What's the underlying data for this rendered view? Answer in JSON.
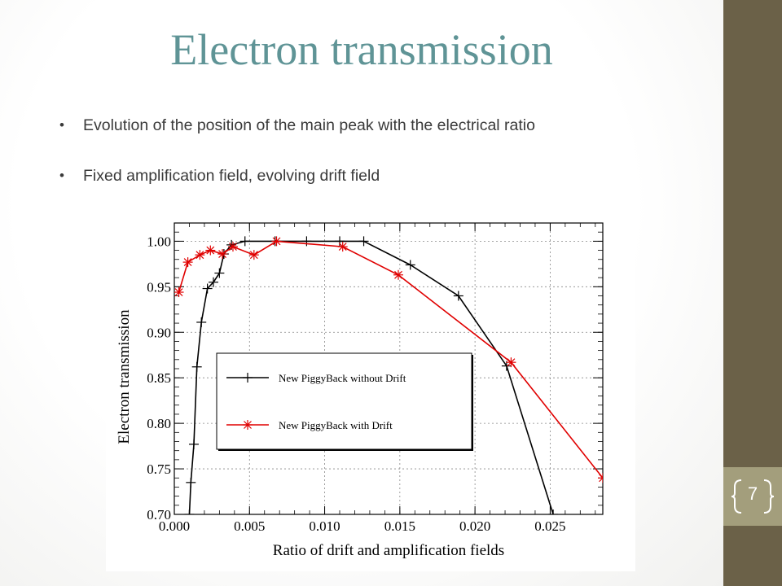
{
  "slide": {
    "title": "Electron transmission",
    "bullets": [
      "Evolution of the position of the main peak with the electrical ratio",
      "Fixed amplification field, evolving drift field"
    ],
    "page_number": "7",
    "colors": {
      "title": "#5f9496",
      "sidebar": "#6b6148",
      "badge": "#a39e7c"
    }
  },
  "chart_data": {
    "type": "line",
    "title": "",
    "xlabel": "Ratio of drift and amplification fields",
    "ylabel": "Electron transmission",
    "xlim": [
      0.0,
      0.0285
    ],
    "ylim": [
      0.7,
      1.02
    ],
    "xticks": [
      "0.000",
      "0.005",
      "0.010",
      "0.015",
      "0.020",
      "0.025"
    ],
    "yticks": [
      "0.70",
      "0.75",
      "0.80",
      "0.85",
      "0.90",
      "0.95",
      "1.00"
    ],
    "grid": true,
    "legend_position": "center-left",
    "series": [
      {
        "name": "New PiggyBack without Drift",
        "color": "#000000",
        "marker": "plus",
        "points": [
          [
            0.001,
            0.7
          ],
          [
            0.0011,
            0.735
          ],
          [
            0.0013,
            0.777
          ],
          [
            0.0015,
            0.862
          ],
          [
            0.0018,
            0.911
          ],
          [
            0.0022,
            0.948
          ],
          [
            0.0026,
            0.955
          ],
          [
            0.003,
            0.965
          ],
          [
            0.0033,
            0.986
          ],
          [
            0.0038,
            0.996
          ],
          [
            0.0047,
            1.0
          ],
          [
            0.0067,
            1.0
          ],
          [
            0.0088,
            1.0
          ],
          [
            0.011,
            1.0
          ],
          [
            0.0126,
            1.0
          ],
          [
            0.0157,
            0.974
          ],
          [
            0.0189,
            0.94
          ],
          [
            0.0221,
            0.863
          ],
          [
            0.0252,
            0.7
          ]
        ]
      },
      {
        "name": "New PiggyBack with Drift",
        "color": "#e00000",
        "marker": "star",
        "points": [
          [
            0.0003,
            0.944
          ],
          [
            0.0009,
            0.977
          ],
          [
            0.0017,
            0.985
          ],
          [
            0.0024,
            0.99
          ],
          [
            0.0032,
            0.986
          ],
          [
            0.0039,
            0.994
          ],
          [
            0.0053,
            0.985
          ],
          [
            0.0068,
            1.0
          ],
          [
            0.0112,
            0.994
          ],
          [
            0.0149,
            0.963
          ],
          [
            0.0224,
            0.867
          ],
          [
            0.0285,
            0.74
          ]
        ]
      }
    ]
  }
}
